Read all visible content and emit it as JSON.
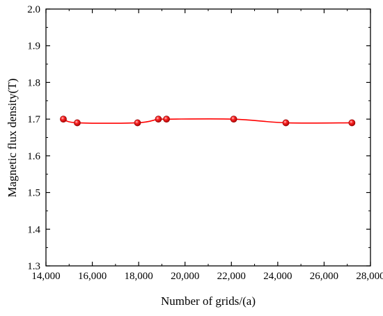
{
  "chart_data": {
    "type": "line",
    "title": "",
    "xlabel": "Number of grids/(a)",
    "ylabel": "Magnetic flux density(T)",
    "xlim": [
      14000,
      28000
    ],
    "ylim": [
      1.3,
      2.0
    ],
    "x_ticks": [
      14000,
      16000,
      18000,
      20000,
      22000,
      24000,
      26000,
      28000
    ],
    "x_tick_labels": [
      "14,000",
      "16,000",
      "18,000",
      "20,000",
      "22,000",
      "24,000",
      "26,000",
      "28,000"
    ],
    "y_ticks": [
      1.3,
      1.4,
      1.5,
      1.6,
      1.7,
      1.8,
      1.9,
      2.0
    ],
    "y_tick_labels": [
      "1.3",
      "1.4",
      "1.5",
      "1.6",
      "1.7",
      "1.8",
      "1.9",
      "2.0"
    ],
    "grid": false,
    "legend": "none",
    "smooth": true,
    "series": [
      {
        "color": "#ff0000",
        "marker": "sphere",
        "x": [
          14750,
          15350,
          17950,
          18850,
          19200,
          22100,
          24350,
          27200
        ],
        "y": [
          1.7,
          1.69,
          1.69,
          1.7,
          1.7,
          1.7,
          1.69,
          1.69
        ]
      }
    ]
  }
}
